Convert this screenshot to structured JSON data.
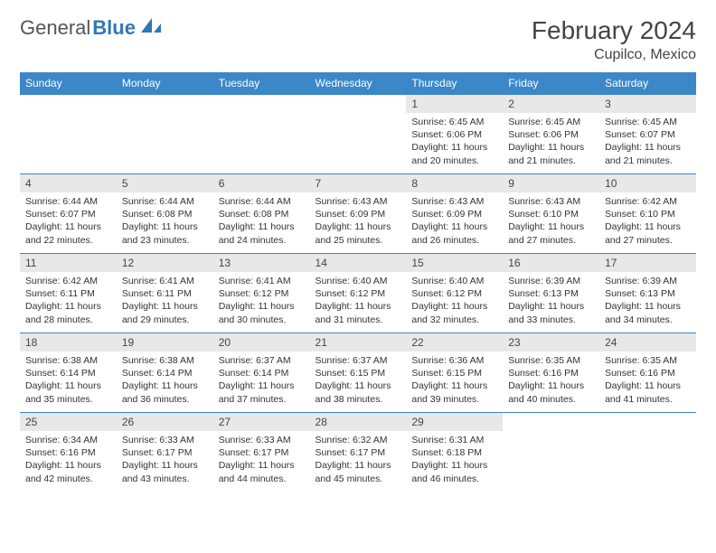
{
  "brand": {
    "part1": "General",
    "part2": "Blue"
  },
  "title": "February 2024",
  "location": "Cupilco, Mexico",
  "colors": {
    "header_bg": "#3b87c8",
    "header_text": "#ffffff",
    "day_num_bg": "#e8e8e8",
    "cell_border": "#3b87c8",
    "text": "#333333",
    "brand_gray": "#555555",
    "brand_blue": "#2f78b7"
  },
  "weekdays": [
    "Sunday",
    "Monday",
    "Tuesday",
    "Wednesday",
    "Thursday",
    "Friday",
    "Saturday"
  ],
  "weeks": [
    [
      null,
      null,
      null,
      null,
      {
        "d": "1",
        "sr": "6:45 AM",
        "ss": "6:06 PM",
        "dl": "11 hours and 20 minutes."
      },
      {
        "d": "2",
        "sr": "6:45 AM",
        "ss": "6:06 PM",
        "dl": "11 hours and 21 minutes."
      },
      {
        "d": "3",
        "sr": "6:45 AM",
        "ss": "6:07 PM",
        "dl": "11 hours and 21 minutes."
      }
    ],
    [
      {
        "d": "4",
        "sr": "6:44 AM",
        "ss": "6:07 PM",
        "dl": "11 hours and 22 minutes."
      },
      {
        "d": "5",
        "sr": "6:44 AM",
        "ss": "6:08 PM",
        "dl": "11 hours and 23 minutes."
      },
      {
        "d": "6",
        "sr": "6:44 AM",
        "ss": "6:08 PM",
        "dl": "11 hours and 24 minutes."
      },
      {
        "d": "7",
        "sr": "6:43 AM",
        "ss": "6:09 PM",
        "dl": "11 hours and 25 minutes."
      },
      {
        "d": "8",
        "sr": "6:43 AM",
        "ss": "6:09 PM",
        "dl": "11 hours and 26 minutes."
      },
      {
        "d": "9",
        "sr": "6:43 AM",
        "ss": "6:10 PM",
        "dl": "11 hours and 27 minutes."
      },
      {
        "d": "10",
        "sr": "6:42 AM",
        "ss": "6:10 PM",
        "dl": "11 hours and 27 minutes."
      }
    ],
    [
      {
        "d": "11",
        "sr": "6:42 AM",
        "ss": "6:11 PM",
        "dl": "11 hours and 28 minutes."
      },
      {
        "d": "12",
        "sr": "6:41 AM",
        "ss": "6:11 PM",
        "dl": "11 hours and 29 minutes."
      },
      {
        "d": "13",
        "sr": "6:41 AM",
        "ss": "6:12 PM",
        "dl": "11 hours and 30 minutes."
      },
      {
        "d": "14",
        "sr": "6:40 AM",
        "ss": "6:12 PM",
        "dl": "11 hours and 31 minutes."
      },
      {
        "d": "15",
        "sr": "6:40 AM",
        "ss": "6:12 PM",
        "dl": "11 hours and 32 minutes."
      },
      {
        "d": "16",
        "sr": "6:39 AM",
        "ss": "6:13 PM",
        "dl": "11 hours and 33 minutes."
      },
      {
        "d": "17",
        "sr": "6:39 AM",
        "ss": "6:13 PM",
        "dl": "11 hours and 34 minutes."
      }
    ],
    [
      {
        "d": "18",
        "sr": "6:38 AM",
        "ss": "6:14 PM",
        "dl": "11 hours and 35 minutes."
      },
      {
        "d": "19",
        "sr": "6:38 AM",
        "ss": "6:14 PM",
        "dl": "11 hours and 36 minutes."
      },
      {
        "d": "20",
        "sr": "6:37 AM",
        "ss": "6:14 PM",
        "dl": "11 hours and 37 minutes."
      },
      {
        "d": "21",
        "sr": "6:37 AM",
        "ss": "6:15 PM",
        "dl": "11 hours and 38 minutes."
      },
      {
        "d": "22",
        "sr": "6:36 AM",
        "ss": "6:15 PM",
        "dl": "11 hours and 39 minutes."
      },
      {
        "d": "23",
        "sr": "6:35 AM",
        "ss": "6:16 PM",
        "dl": "11 hours and 40 minutes."
      },
      {
        "d": "24",
        "sr": "6:35 AM",
        "ss": "6:16 PM",
        "dl": "11 hours and 41 minutes."
      }
    ],
    [
      {
        "d": "25",
        "sr": "6:34 AM",
        "ss": "6:16 PM",
        "dl": "11 hours and 42 minutes."
      },
      {
        "d": "26",
        "sr": "6:33 AM",
        "ss": "6:17 PM",
        "dl": "11 hours and 43 minutes."
      },
      {
        "d": "27",
        "sr": "6:33 AM",
        "ss": "6:17 PM",
        "dl": "11 hours and 44 minutes."
      },
      {
        "d": "28",
        "sr": "6:32 AM",
        "ss": "6:17 PM",
        "dl": "11 hours and 45 minutes."
      },
      {
        "d": "29",
        "sr": "6:31 AM",
        "ss": "6:18 PM",
        "dl": "11 hours and 46 minutes."
      },
      null,
      null
    ]
  ],
  "labels": {
    "sunrise": "Sunrise:",
    "sunset": "Sunset:",
    "daylight": "Daylight:"
  }
}
